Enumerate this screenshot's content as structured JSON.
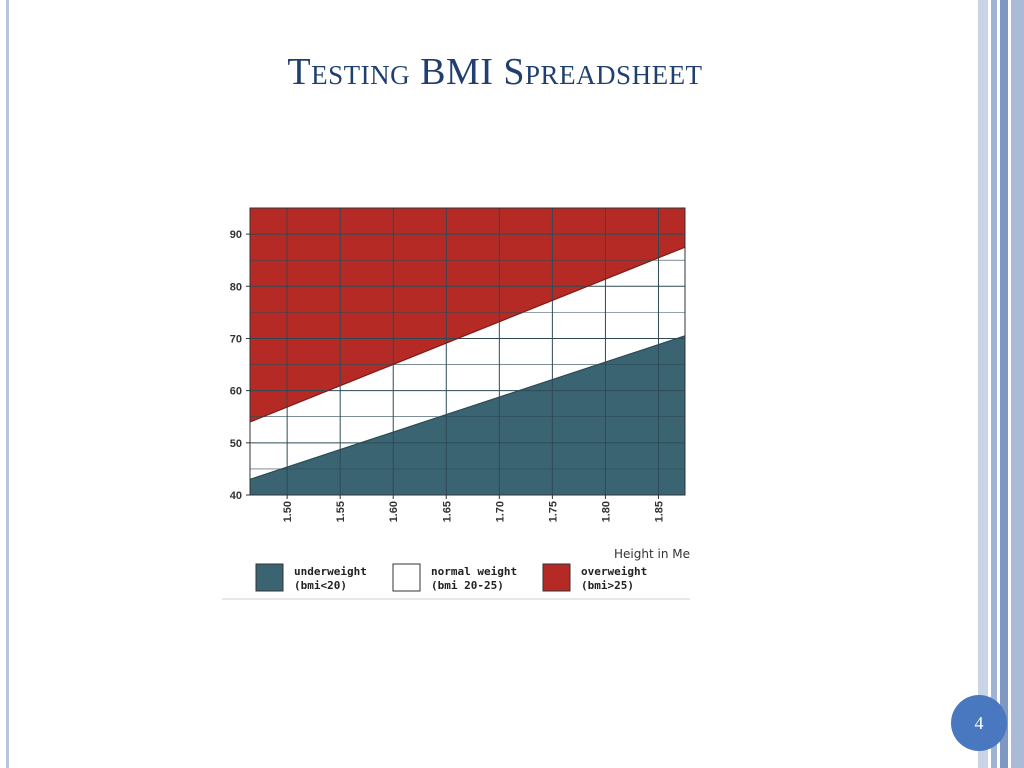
{
  "slide": {
    "title": "Testing BMI Spreadsheet",
    "page_number": "4"
  },
  "colors": {
    "underweight": "#3a6472",
    "normal": "#ffffff",
    "overweight": "#b52a24",
    "grid": "#2f4a56",
    "title": "#1f3f6e",
    "badge": "#4a78c0",
    "stripes": [
      "#c9d4e6",
      "#ffffff",
      "#9fb3d2",
      "#ffffff",
      "#7e97c3",
      "#ffffff",
      "#aabbd8"
    ]
  },
  "chart_data": {
    "type": "area",
    "xlabel": "Height in Me",
    "ylabel": "",
    "x_ticks": [
      "1.50",
      "1.55",
      "1.60",
      "1.65",
      "1.70",
      "1.75",
      "1.80",
      "1.85"
    ],
    "y_ticks": [
      "40",
      "50",
      "60",
      "70",
      "80",
      "90"
    ],
    "xlim": [
      1.465,
      1.875
    ],
    "ylim": [
      40,
      95
    ],
    "grid": true,
    "boundaries": [
      {
        "bmi": 20,
        "x": [
          1.465,
          1.875
        ],
        "y": [
          43,
          70.5
        ]
      },
      {
        "bmi": 25,
        "x": [
          1.465,
          1.875
        ],
        "y": [
          54,
          87.5
        ]
      }
    ],
    "legend": [
      {
        "key": "underweight",
        "line1": "underweight",
        "line2": "(bmi<20)"
      },
      {
        "key": "normal",
        "line1": "normal weight",
        "line2": "(bmi 20-25)"
      },
      {
        "key": "overweight",
        "line1": "overweight",
        "line2": "(bmi>25)"
      }
    ],
    "legend_position": "bottom"
  }
}
